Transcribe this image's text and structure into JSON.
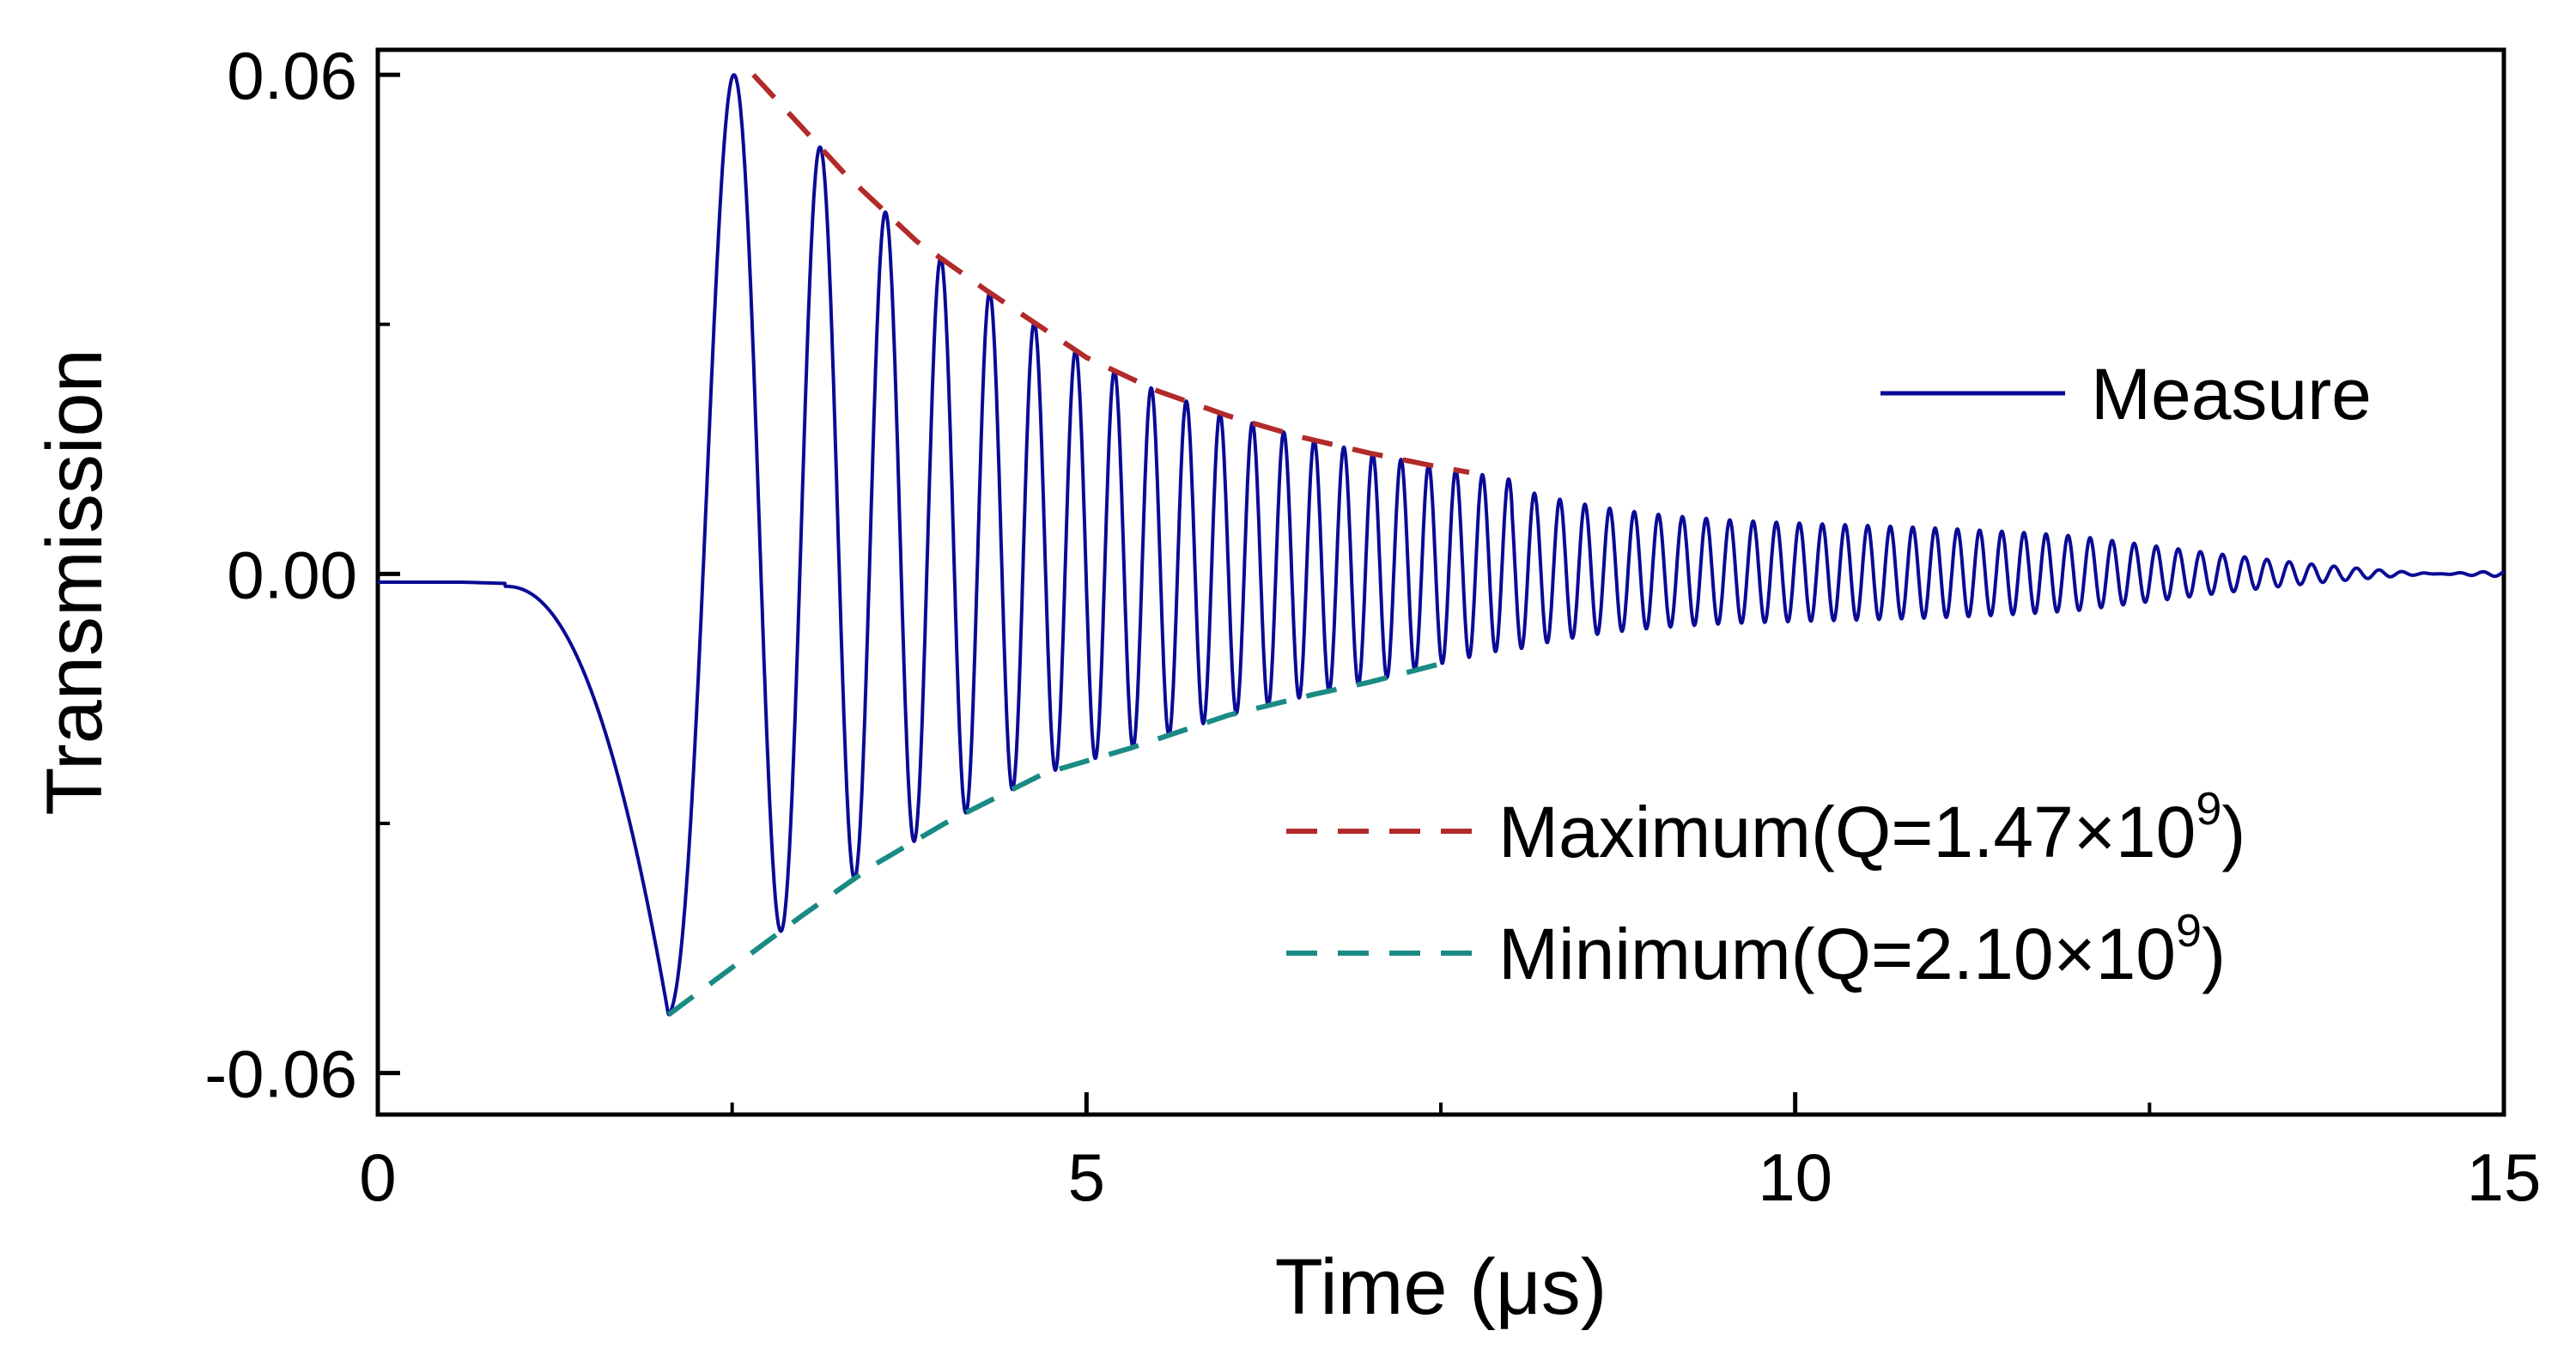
{
  "chart_data": {
    "type": "line",
    "title": "",
    "xlabel": "Time (μs)",
    "ylabel": "Transmission",
    "xlim": [
      0,
      15
    ],
    "ylim": [
      -0.065,
      0.063
    ],
    "x_ticks": [
      0,
      5,
      10,
      15
    ],
    "x_tick_labels": [
      "0",
      "5",
      "10",
      "15"
    ],
    "x_minor_ticks": [
      2.5,
      7.5,
      12.5
    ],
    "y_ticks": [
      -0.06,
      0.0,
      0.06
    ],
    "y_tick_labels": [
      "-0.06",
      "0.00",
      "0.06"
    ],
    "y_minor_ticks": [
      -0.03,
      0.03
    ],
    "grid": false,
    "legend": [
      {
        "position": "right",
        "entries": [
          "Measure"
        ]
      },
      {
        "position": "bottom-right",
        "entries": [
          "Maximum(Q=1.47×10",
          "Minimum(Q=2.10×10"
        ]
      }
    ],
    "series": [
      {
        "name": "Measure",
        "style": "solid",
        "color": "#0a0a96",
        "description_points": {
          "baseline_start": [
            0,
            -0.001
          ],
          "dip_minimum": [
            2.05,
            -0.053
          ],
          "first_peak": [
            2.65,
            0.06
          ],
          "oscillation_period_initial": 0.45,
          "oscillation_period_late": 0.13,
          "end": [
            15,
            0.0
          ]
        }
      },
      {
        "name": "Maximum(Q=1.47×10",
        "style": "dashed",
        "color": "#b22a2a",
        "x": [
          2.65,
          3.3,
          3.8,
          4.3,
          5.0,
          5.5,
          6.0,
          6.5,
          7.0,
          7.5,
          7.7
        ],
        "values": [
          0.06,
          0.048,
          0.04,
          0.034,
          0.026,
          0.022,
          0.019,
          0.0165,
          0.0145,
          0.0128,
          0.0122
        ]
      },
      {
        "name": "Minimum(Q=2.10×10",
        "style": "dashed",
        "color": "#1a8a84",
        "x": [
          2.05,
          3.0,
          3.5,
          4.0,
          4.7,
          5.3,
          6.0,
          6.6,
          7.0,
          7.5
        ],
        "values": [
          -0.053,
          -0.041,
          -0.035,
          -0.03,
          -0.024,
          -0.021,
          -0.017,
          -0.0145,
          -0.013,
          -0.0108
        ]
      }
    ],
    "legend_superscript": "9",
    "legend_closing": ")"
  }
}
